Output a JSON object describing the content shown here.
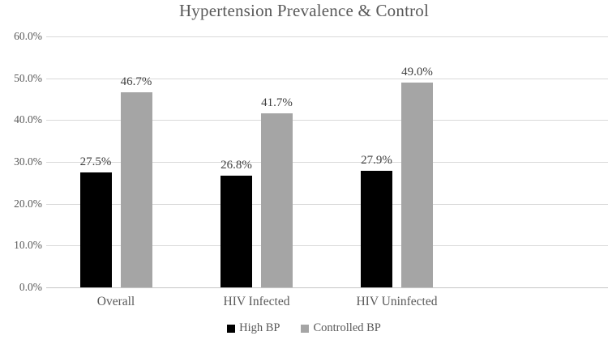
{
  "title": "Hypertension Prevalence & Control",
  "chart_data": {
    "type": "bar",
    "title": "Hypertension Prevalence & Control",
    "categories": [
      "Overall",
      "HIV Infected",
      "HIV Uninfected"
    ],
    "series": [
      {
        "name": "High BP",
        "color": "#000000",
        "values": [
          27.5,
          26.8,
          27.9
        ],
        "data_labels": [
          "27.5%",
          "26.8%",
          "27.9%"
        ]
      },
      {
        "name": "Controlled BP",
        "color": "#a5a5a5",
        "values": [
          46.7,
          41.7,
          49.0
        ],
        "data_labels": [
          "46.7%",
          "41.7%",
          "49.0%"
        ]
      }
    ],
    "xlabel": "",
    "ylabel": "",
    "ylim": [
      0,
      60
    ],
    "ytick_step": 10,
    "yticks": [
      "0.0%",
      "10.0%",
      "20.0%",
      "30.0%",
      "40.0%",
      "50.0%",
      "60.0%"
    ],
    "grid": "horizontal",
    "gridline_color": "#d9d9d9",
    "legend_position": "bottom",
    "text_color": "#595959",
    "data_label_color": "#404040"
  }
}
